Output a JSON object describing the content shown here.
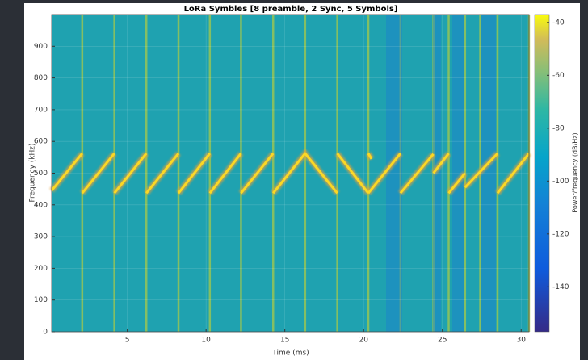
{
  "chart_data": {
    "type": "spectrogram",
    "title": "LoRa Symbles [8 preamble, 2 Sync, 5 Symbols]",
    "x_label": "Time (ms)",
    "y_label": "Frequency (kHz)",
    "colorbar_label": "Power/frequency (dB/Hz)",
    "xlim": [
      0.2,
      30.5
    ],
    "xticks": [
      5,
      10,
      15,
      20,
      25,
      30
    ],
    "ylim": [
      0,
      1000
    ],
    "yticks": [
      0,
      100,
      200,
      300,
      400,
      500,
      600,
      700,
      800,
      900
    ],
    "clim": [
      -157,
      -37
    ],
    "cticks": [
      -140,
      -120,
      -100,
      -80,
      -60,
      -40
    ],
    "background_color": "#1fa2b0",
    "grid": true,
    "series": [
      {
        "color": "#fbd824",
        "x": [
          0.2,
          2.14,
          null,
          2.14,
          4.18,
          null,
          4.18,
          6.21,
          null,
          6.21,
          8.25,
          null,
          8.25,
          10.24,
          null,
          10.24,
          12.22,
          null,
          12.22,
          14.26,
          null,
          14.26,
          16.29,
          18.33,
          null,
          18.33,
          20.3,
          null,
          20.3,
          20.5,
          null,
          20.3,
          22.34,
          null,
          22.34,
          24.43,
          null,
          24.43,
          25.4,
          null,
          25.4,
          26.44,
          null,
          26.44,
          28.5,
          null,
          28.5,
          30.5
        ],
        "values": [
          445,
          562,
          null,
          437,
          562,
          null,
          437,
          562,
          null,
          437,
          562,
          null,
          437,
          562,
          null,
          437,
          562,
          null,
          437,
          562,
          null,
          437,
          562,
          437,
          null,
          562,
          437,
          null,
          562,
          545,
          null,
          437,
          562,
          null,
          437,
          560,
          null,
          500,
          562,
          null,
          437,
          500,
          null,
          455,
          562,
          null,
          437,
          562
        ]
      }
    ],
    "transients": [
      2.14,
      4.18,
      6.21,
      8.25,
      10.24,
      12.22,
      14.26,
      16.29,
      18.33,
      20.3,
      22.34,
      24.43,
      25.4,
      26.44,
      27.4,
      28.5,
      30.5
    ]
  }
}
